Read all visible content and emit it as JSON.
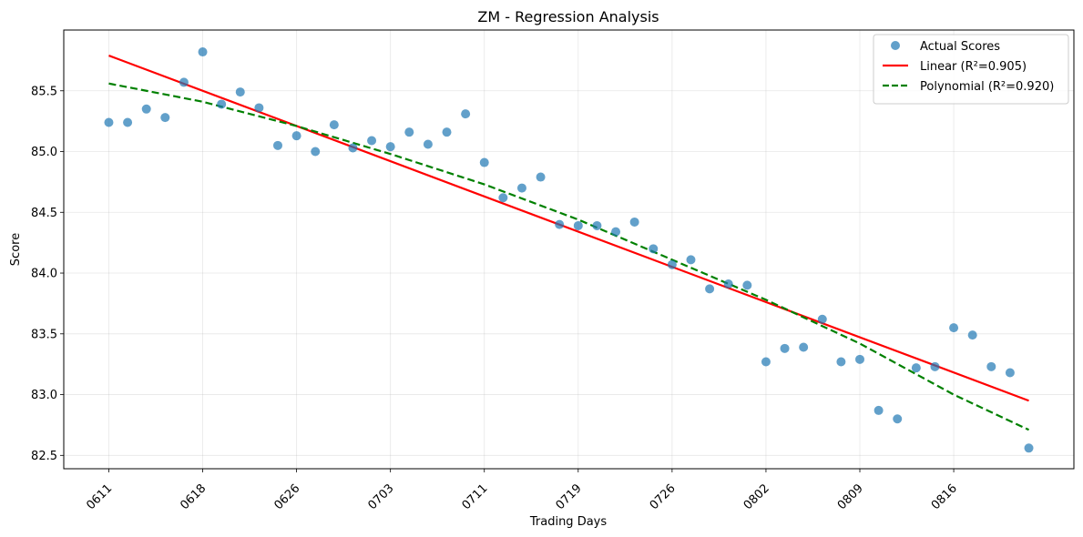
{
  "chart_data": {
    "type": "scatter",
    "title": "ZM - Regression Analysis",
    "xlabel": "Trading Days",
    "ylabel": "Score",
    "xlim": [
      -2.4,
      51.4
    ],
    "ylim": [
      82.39,
      86.0
    ],
    "grid": true,
    "legend_position": "top-right",
    "x_ticks": [
      {
        "x": 0,
        "label": "0611"
      },
      {
        "x": 5,
        "label": "0618"
      },
      {
        "x": 10,
        "label": "0626"
      },
      {
        "x": 15,
        "label": "0703"
      },
      {
        "x": 20,
        "label": "0711"
      },
      {
        "x": 25,
        "label": "0719"
      },
      {
        "x": 30,
        "label": "0726"
      },
      {
        "x": 35,
        "label": "0802"
      },
      {
        "x": 40,
        "label": "0809"
      },
      {
        "x": 45,
        "label": "0816"
      }
    ],
    "y_ticks": [
      82.5,
      83.0,
      83.5,
      84.0,
      84.5,
      85.0,
      85.5
    ],
    "series": [
      {
        "name": "Actual Scores",
        "kind": "scatter",
        "color": "#1f77b4",
        "x": [
          0,
          1,
          2,
          3,
          4,
          5,
          6,
          7,
          8,
          9,
          10,
          11,
          12,
          13,
          14,
          15,
          16,
          17,
          18,
          19,
          20,
          21,
          22,
          23,
          24,
          25,
          26,
          27,
          28,
          29,
          30,
          31,
          32,
          33,
          34,
          35,
          36,
          37,
          38,
          39,
          40,
          41,
          42,
          43,
          44,
          45,
          46,
          47,
          48,
          49
        ],
        "y": [
          85.24,
          85.24,
          85.35,
          85.28,
          85.57,
          85.82,
          85.39,
          85.49,
          85.36,
          85.05,
          85.13,
          85.0,
          85.22,
          85.03,
          85.09,
          85.04,
          85.16,
          85.06,
          85.16,
          85.31,
          84.91,
          84.62,
          84.7,
          84.79,
          84.4,
          84.39,
          84.39,
          84.34,
          84.42,
          84.2,
          84.07,
          84.11,
          83.87,
          83.91,
          83.9,
          83.27,
          83.38,
          83.39,
          83.62,
          83.27,
          83.29,
          82.87,
          82.8,
          83.22,
          83.23,
          83.55,
          83.49,
          83.23,
          83.18,
          82.56
        ]
      },
      {
        "name": "Linear (R²=0.905)",
        "kind": "line",
        "color": "#ff0000",
        "x": [
          0,
          49
        ],
        "y": [
          85.79,
          82.95
        ]
      },
      {
        "name": "Polynomial (R²=0.920)",
        "kind": "line",
        "dash": "dashed",
        "color": "#008000",
        "x": [
          0,
          5,
          10,
          15,
          20,
          25,
          30,
          35,
          40,
          45,
          49
        ],
        "y": [
          85.56,
          85.41,
          85.21,
          84.98,
          84.73,
          84.44,
          84.11,
          83.78,
          83.42,
          83.0,
          82.71
        ]
      }
    ]
  }
}
